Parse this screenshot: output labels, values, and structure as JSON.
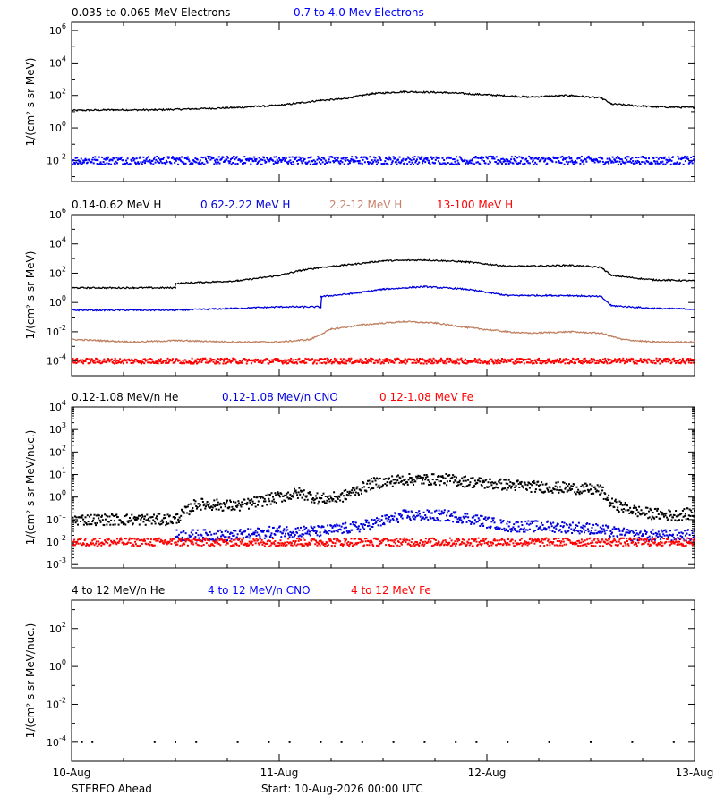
{
  "footer": {
    "spacecraft": "STEREO Ahead",
    "start": "Start: 10-Aug-2026 00:00 UTC"
  },
  "x_axis": {
    "domain_days": [
      0,
      3
    ],
    "tick_labels": [
      "10-Aug",
      "11-Aug",
      "12-Aug",
      "13-Aug"
    ],
    "minor_ticks_per_day": 4
  },
  "chart_data": [
    {
      "type": "scatter",
      "log_y": true,
      "ylabel": "1/(cm² s sr MeV)",
      "ylim_exp": [
        -3.3,
        6.5
      ],
      "y_ticks_exp": [
        -2,
        0,
        2,
        4,
        6
      ],
      "series": [
        {
          "name": "0.035 to 0.065 MeV Electrons",
          "color": "#000000",
          "style": "line",
          "x": [
            0,
            0.2,
            0.4,
            0.6,
            0.8,
            1.0,
            1.1,
            1.2,
            1.3,
            1.45,
            1.6,
            1.8,
            2.0,
            2.2,
            2.4,
            2.55,
            2.6,
            2.8,
            3.0
          ],
          "y": [
            12,
            13,
            13,
            15,
            18,
            25,
            35,
            50,
            60,
            130,
            170,
            150,
            110,
            80,
            100,
            70,
            30,
            20,
            18
          ]
        },
        {
          "name": "0.7 to 4.0 Mev Electrons",
          "color": "#0000ff",
          "style": "dots",
          "x": [
            0,
            1.5,
            3.0
          ],
          "y": [
            0.01,
            0.01,
            0.01
          ]
        }
      ]
    },
    {
      "type": "scatter",
      "log_y": true,
      "ylabel": "1/(cm² s sr MeV)",
      "ylim_exp": [
        -5,
        6
      ],
      "y_ticks_exp": [
        -4,
        -2,
        0,
        2,
        4,
        6
      ],
      "series": [
        {
          "name": "0.14-0.62 MeV H",
          "color": "#000000",
          "style": "line",
          "x": [
            0,
            0.3,
            0.5,
            0.5,
            0.8,
            1.0,
            1.1,
            1.2,
            1.35,
            1.5,
            1.7,
            1.9,
            2.1,
            2.2,
            2.4,
            2.55,
            2.6,
            2.8,
            3.0
          ],
          "y": [
            10,
            10,
            10,
            20,
            30,
            70,
            150,
            250,
            400,
            700,
            800,
            600,
            300,
            300,
            350,
            250,
            70,
            35,
            30
          ]
        },
        {
          "name": "0.62-2.22 MeV H",
          "color": "#0000dd",
          "style": "line",
          "x": [
            0,
            0.3,
            0.5,
            0.8,
            1.0,
            1.1,
            1.2,
            1.2,
            1.35,
            1.5,
            1.7,
            1.9,
            2.1,
            2.2,
            2.4,
            2.55,
            2.6,
            2.8,
            3.0
          ],
          "y": [
            0.3,
            0.3,
            0.3,
            0.4,
            0.5,
            0.5,
            0.5,
            2.5,
            4,
            8,
            12,
            8,
            3,
            3,
            3,
            2.5,
            0.6,
            0.4,
            0.35
          ]
        },
        {
          "name": "2.2-12 MeV H",
          "color": "#c08060",
          "style": "line",
          "x": [
            0,
            0.3,
            0.5,
            0.8,
            1.0,
            1.15,
            1.25,
            1.4,
            1.6,
            1.75,
            1.9,
            2.1,
            2.2,
            2.4,
            2.55,
            2.65,
            2.8,
            3.0
          ],
          "y": [
            0.003,
            0.002,
            0.0025,
            0.002,
            0.002,
            0.003,
            0.015,
            0.03,
            0.05,
            0.04,
            0.02,
            0.01,
            0.008,
            0.01,
            0.008,
            0.003,
            0.002,
            0.002
          ]
        },
        {
          "name": "13-100 MeV H",
          "color": "#ff0000",
          "style": "dots",
          "x": [
            0,
            1.5,
            3.0
          ],
          "y": [
            0.0001,
            0.0001,
            0.0001
          ]
        }
      ]
    },
    {
      "type": "scatter",
      "log_y": true,
      "ylabel": "1/(cm² s sr MeV/nuc.)",
      "ylim_exp": [
        -3.15,
        4
      ],
      "y_ticks_exp": [
        -3,
        -2,
        -1,
        0,
        1,
        2,
        3,
        4
      ],
      "series": [
        {
          "name": "0.12-1.08 MeV/n He",
          "color": "#000000",
          "style": "dots",
          "x": [
            0,
            0.3,
            0.5,
            0.6,
            0.8,
            1.0,
            1.1,
            1.2,
            1.3,
            1.45,
            1.6,
            1.8,
            2.0,
            2.2,
            2.4,
            2.55,
            2.6,
            2.75,
            2.9,
            3.0
          ],
          "y": [
            0.1,
            0.1,
            0.1,
            0.5,
            0.4,
            1.0,
            1.5,
            0.8,
            1.0,
            4,
            6,
            6,
            4,
            3,
            2.5,
            2,
            0.5,
            0.2,
            0.15,
            0.2
          ]
        },
        {
          "name": "0.12-1.08 MeV/n CNO",
          "color": "#0000dd",
          "style": "dots",
          "x": [
            0.5,
            0.8,
            1.0,
            1.2,
            1.4,
            1.6,
            1.8,
            1.9,
            2.1,
            2.3,
            2.5,
            2.7,
            2.9,
            3.0
          ],
          "y": [
            0.02,
            0.02,
            0.03,
            0.03,
            0.05,
            0.15,
            0.15,
            0.12,
            0.05,
            0.05,
            0.04,
            0.02,
            0.02,
            0.02
          ]
        },
        {
          "name": "0.12-1.08 MeV Fe",
          "color": "#ff0000",
          "style": "dots",
          "x": [
            0,
            1.5,
            3.0
          ],
          "y": [
            0.01,
            0.01,
            0.01
          ]
        }
      ]
    },
    {
      "type": "scatter",
      "log_y": true,
      "ylabel": "1/(cm² s sr MeV/nuc.)",
      "ylim_exp": [
        -5,
        3.5
      ],
      "y_ticks_exp": [
        -4,
        -2,
        0,
        2
      ],
      "series": [
        {
          "name": "4 to 12 MeV/n He",
          "color": "#000000",
          "style": "dots",
          "x": [
            0.05,
            0.1,
            0.4,
            0.5,
            0.6,
            0.8,
            0.95,
            1.05,
            1.2,
            1.3,
            1.4,
            1.55,
            1.7,
            1.85,
            1.95,
            2.1,
            2.3,
            2.5,
            2.7,
            2.9
          ],
          "y": [
            0.0001,
            0.0001,
            0.0001,
            0.0001,
            0.0001,
            0.0001,
            0.0001,
            0.0001,
            0.0001,
            0.0001,
            0.0001,
            0.0001,
            0.0001,
            0.0001,
            0.0001,
            0.0001,
            0.0001,
            0.0001,
            0.0001,
            0.0001
          ]
        },
        {
          "name": "4 to 12 MeV/n CNO",
          "color": "#0000ff",
          "style": "dots",
          "x": [],
          "y": []
        },
        {
          "name": "4 to 12 MeV Fe",
          "color": "#ff0000",
          "style": "dots",
          "x": [],
          "y": []
        }
      ]
    }
  ]
}
